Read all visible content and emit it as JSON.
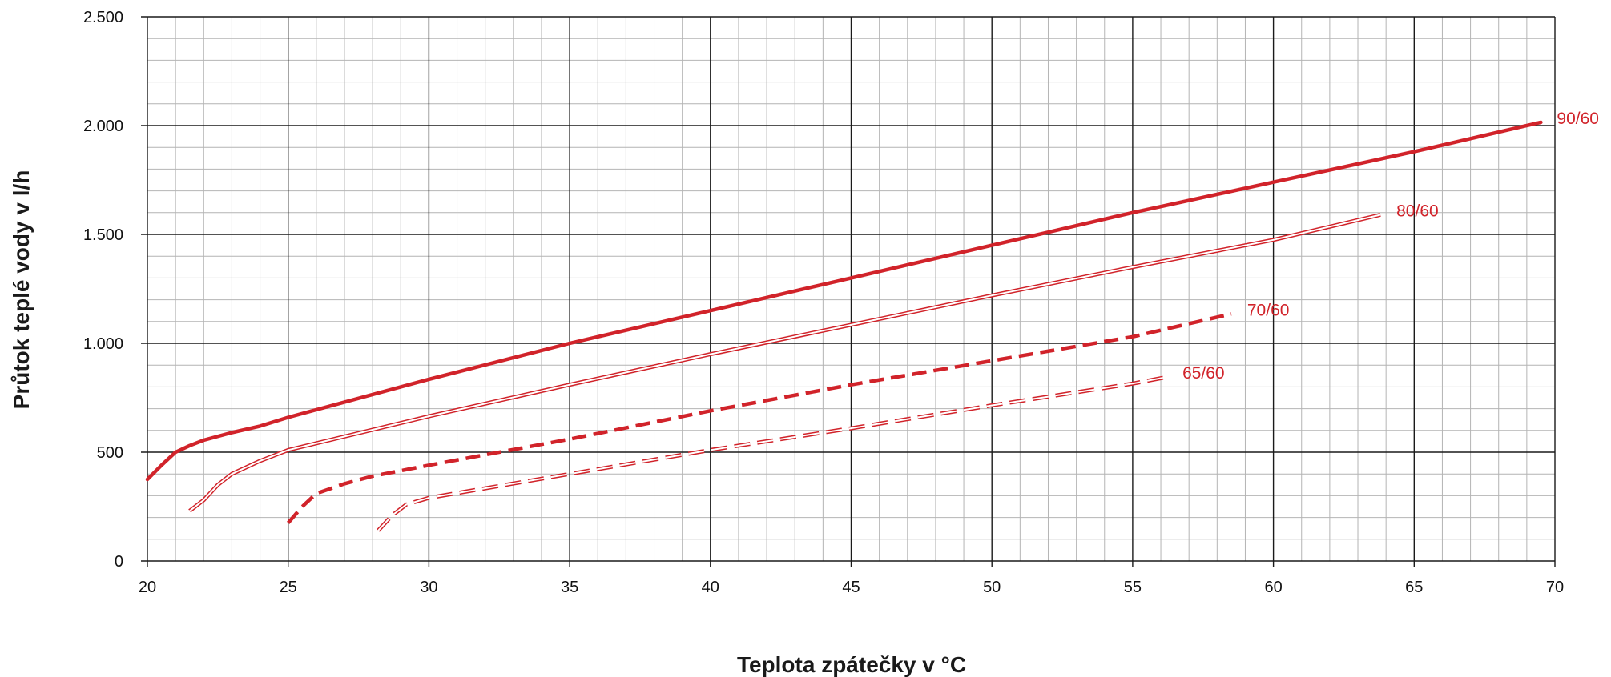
{
  "chart_data": {
    "type": "line",
    "title": "",
    "xlabel": "Teplota zpátečky v °C",
    "ylabel": "Průtok teplé vody v l/h",
    "xlim": [
      20,
      70
    ],
    "ylim": [
      0,
      2500
    ],
    "x_ticks": [
      20,
      25,
      30,
      35,
      40,
      45,
      50,
      55,
      60,
      65,
      70
    ],
    "x_tick_labels": [
      "20",
      "25",
      "30",
      "35",
      "40",
      "45",
      "50",
      "55",
      "60",
      "65",
      "70"
    ],
    "y_ticks": [
      0,
      500,
      1000,
      1500,
      2000,
      2500
    ],
    "y_tick_labels": [
      "0",
      "500",
      "1.000",
      "1.500",
      "2.000",
      "2.500"
    ],
    "grid": true,
    "minor_grid": {
      "x_step": 1,
      "y_step": 100
    },
    "colors": {
      "series": "#d1232a",
      "major_grid": "#1a1a1a",
      "minor_grid": "#b4b4b4"
    },
    "series": [
      {
        "name": "90/60",
        "style": "solid-thick",
        "points": [
          [
            20,
            375
          ],
          [
            20.5,
            440
          ],
          [
            21,
            500
          ],
          [
            21.5,
            530
          ],
          [
            22,
            555
          ],
          [
            23,
            590
          ],
          [
            24,
            620
          ],
          [
            25,
            660
          ],
          [
            30,
            835
          ],
          [
            35,
            1000
          ],
          [
            40,
            1150
          ],
          [
            45,
            1300
          ],
          [
            50,
            1450
          ],
          [
            55,
            1600
          ],
          [
            60,
            1740
          ],
          [
            65,
            1880
          ],
          [
            69.5,
            2015
          ]
        ]
      },
      {
        "name": "80/60",
        "style": "double",
        "points": [
          [
            21.5,
            230
          ],
          [
            22,
            280
          ],
          [
            22.5,
            350
          ],
          [
            23,
            400
          ],
          [
            24,
            460
          ],
          [
            25,
            510
          ],
          [
            30,
            665
          ],
          [
            35,
            810
          ],
          [
            40,
            950
          ],
          [
            45,
            1085
          ],
          [
            50,
            1220
          ],
          [
            55,
            1350
          ],
          [
            60,
            1475
          ],
          [
            63.8,
            1590
          ]
        ]
      },
      {
        "name": "70/60",
        "style": "dashed-thick",
        "points": [
          [
            25,
            175
          ],
          [
            25.5,
            250
          ],
          [
            26,
            310
          ],
          [
            27,
            355
          ],
          [
            28,
            390
          ],
          [
            30,
            440
          ],
          [
            35,
            560
          ],
          [
            40,
            690
          ],
          [
            45,
            810
          ],
          [
            50,
            920
          ],
          [
            55,
            1030
          ],
          [
            58.5,
            1135
          ]
        ]
      },
      {
        "name": "65/60",
        "style": "dashed-double",
        "points": [
          [
            28.2,
            140
          ],
          [
            28.7,
            210
          ],
          [
            29.2,
            260
          ],
          [
            30,
            290
          ],
          [
            35,
            400
          ],
          [
            40,
            510
          ],
          [
            45,
            610
          ],
          [
            50,
            715
          ],
          [
            55,
            815
          ],
          [
            56.2,
            845
          ]
        ]
      }
    ]
  }
}
